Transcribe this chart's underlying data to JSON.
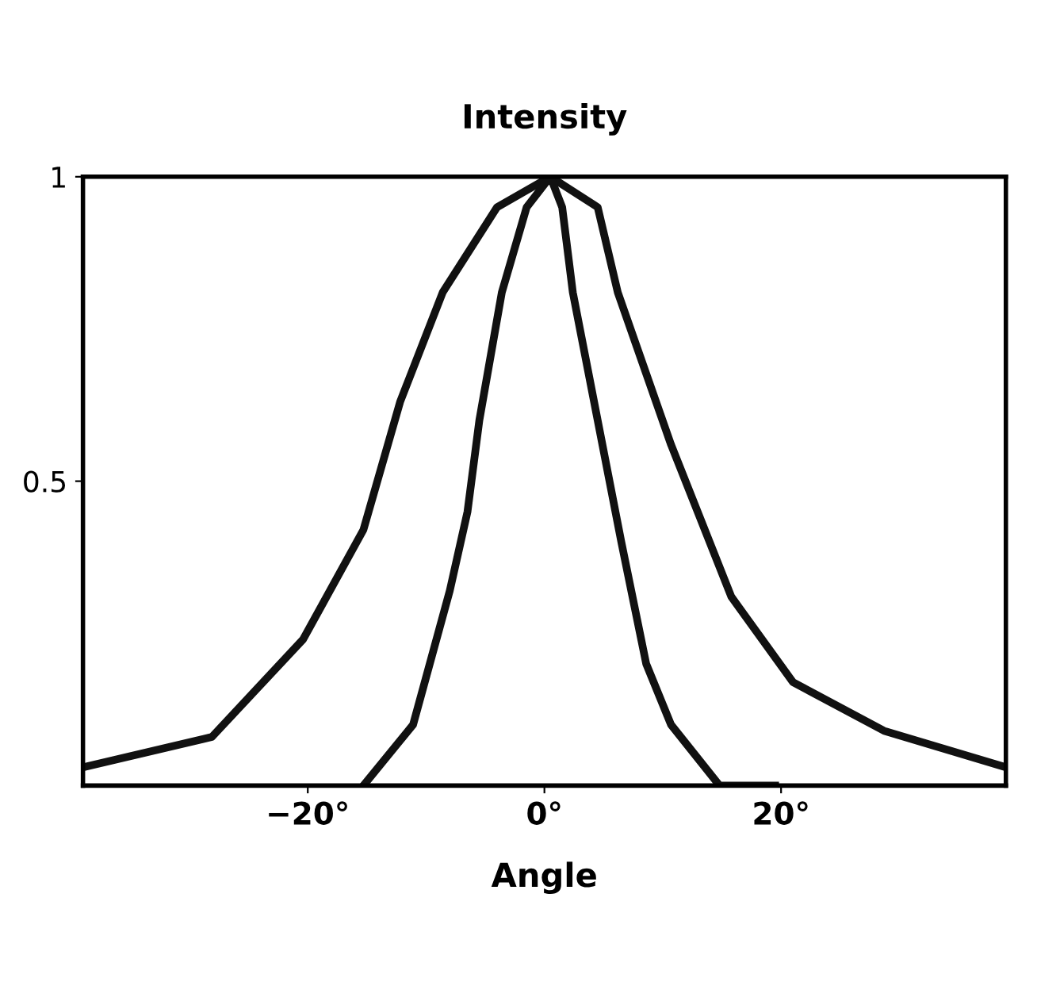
{
  "chart_data": {
    "type": "line",
    "xlabel": "Angle",
    "ylabel": "Intensity",
    "xlim": [
      -39,
      39
    ],
    "ylim": [
      0,
      1
    ],
    "xticks": [
      {
        "value": -20,
        "label": "−20°"
      },
      {
        "value": 0,
        "label": "0°"
      },
      {
        "value": 20,
        "label": "20°"
      }
    ],
    "yticks": [
      {
        "value": 0.5,
        "label": "0.5"
      },
      {
        "value": 1,
        "label": "1"
      }
    ],
    "marker": "none",
    "line_style": "solid",
    "series": [
      {
        "color": "#111111",
        "x": [
          -39,
          -28.1,
          -20.4,
          -15.3,
          -12.2,
          -8.6,
          -4,
          0.5,
          4.5,
          6.2,
          10.7,
          15.8,
          21,
          28.7,
          39
        ],
        "values": [
          0.03,
          0.08,
          0.24,
          0.42,
          0.63,
          0.81,
          0.95,
          1,
          0.95,
          0.81,
          0.56,
          0.31,
          0.17,
          0.09,
          0.03
        ]
      },
      {
        "color": "#111111",
        "x": [
          -15.3,
          -11.1,
          -8,
          -6.5,
          -5.5,
          -3.6,
          -1.5,
          0.5,
          1.5,
          2.4,
          4.5,
          6.5,
          8.6,
          10.7,
          14.8,
          19.5
        ],
        "values": [
          0,
          0.1,
          0.32,
          0.45,
          0.6,
          0.81,
          0.95,
          1,
          0.95,
          0.81,
          0.6,
          0.4,
          0.2,
          0.1,
          0,
          0
        ]
      }
    ]
  }
}
